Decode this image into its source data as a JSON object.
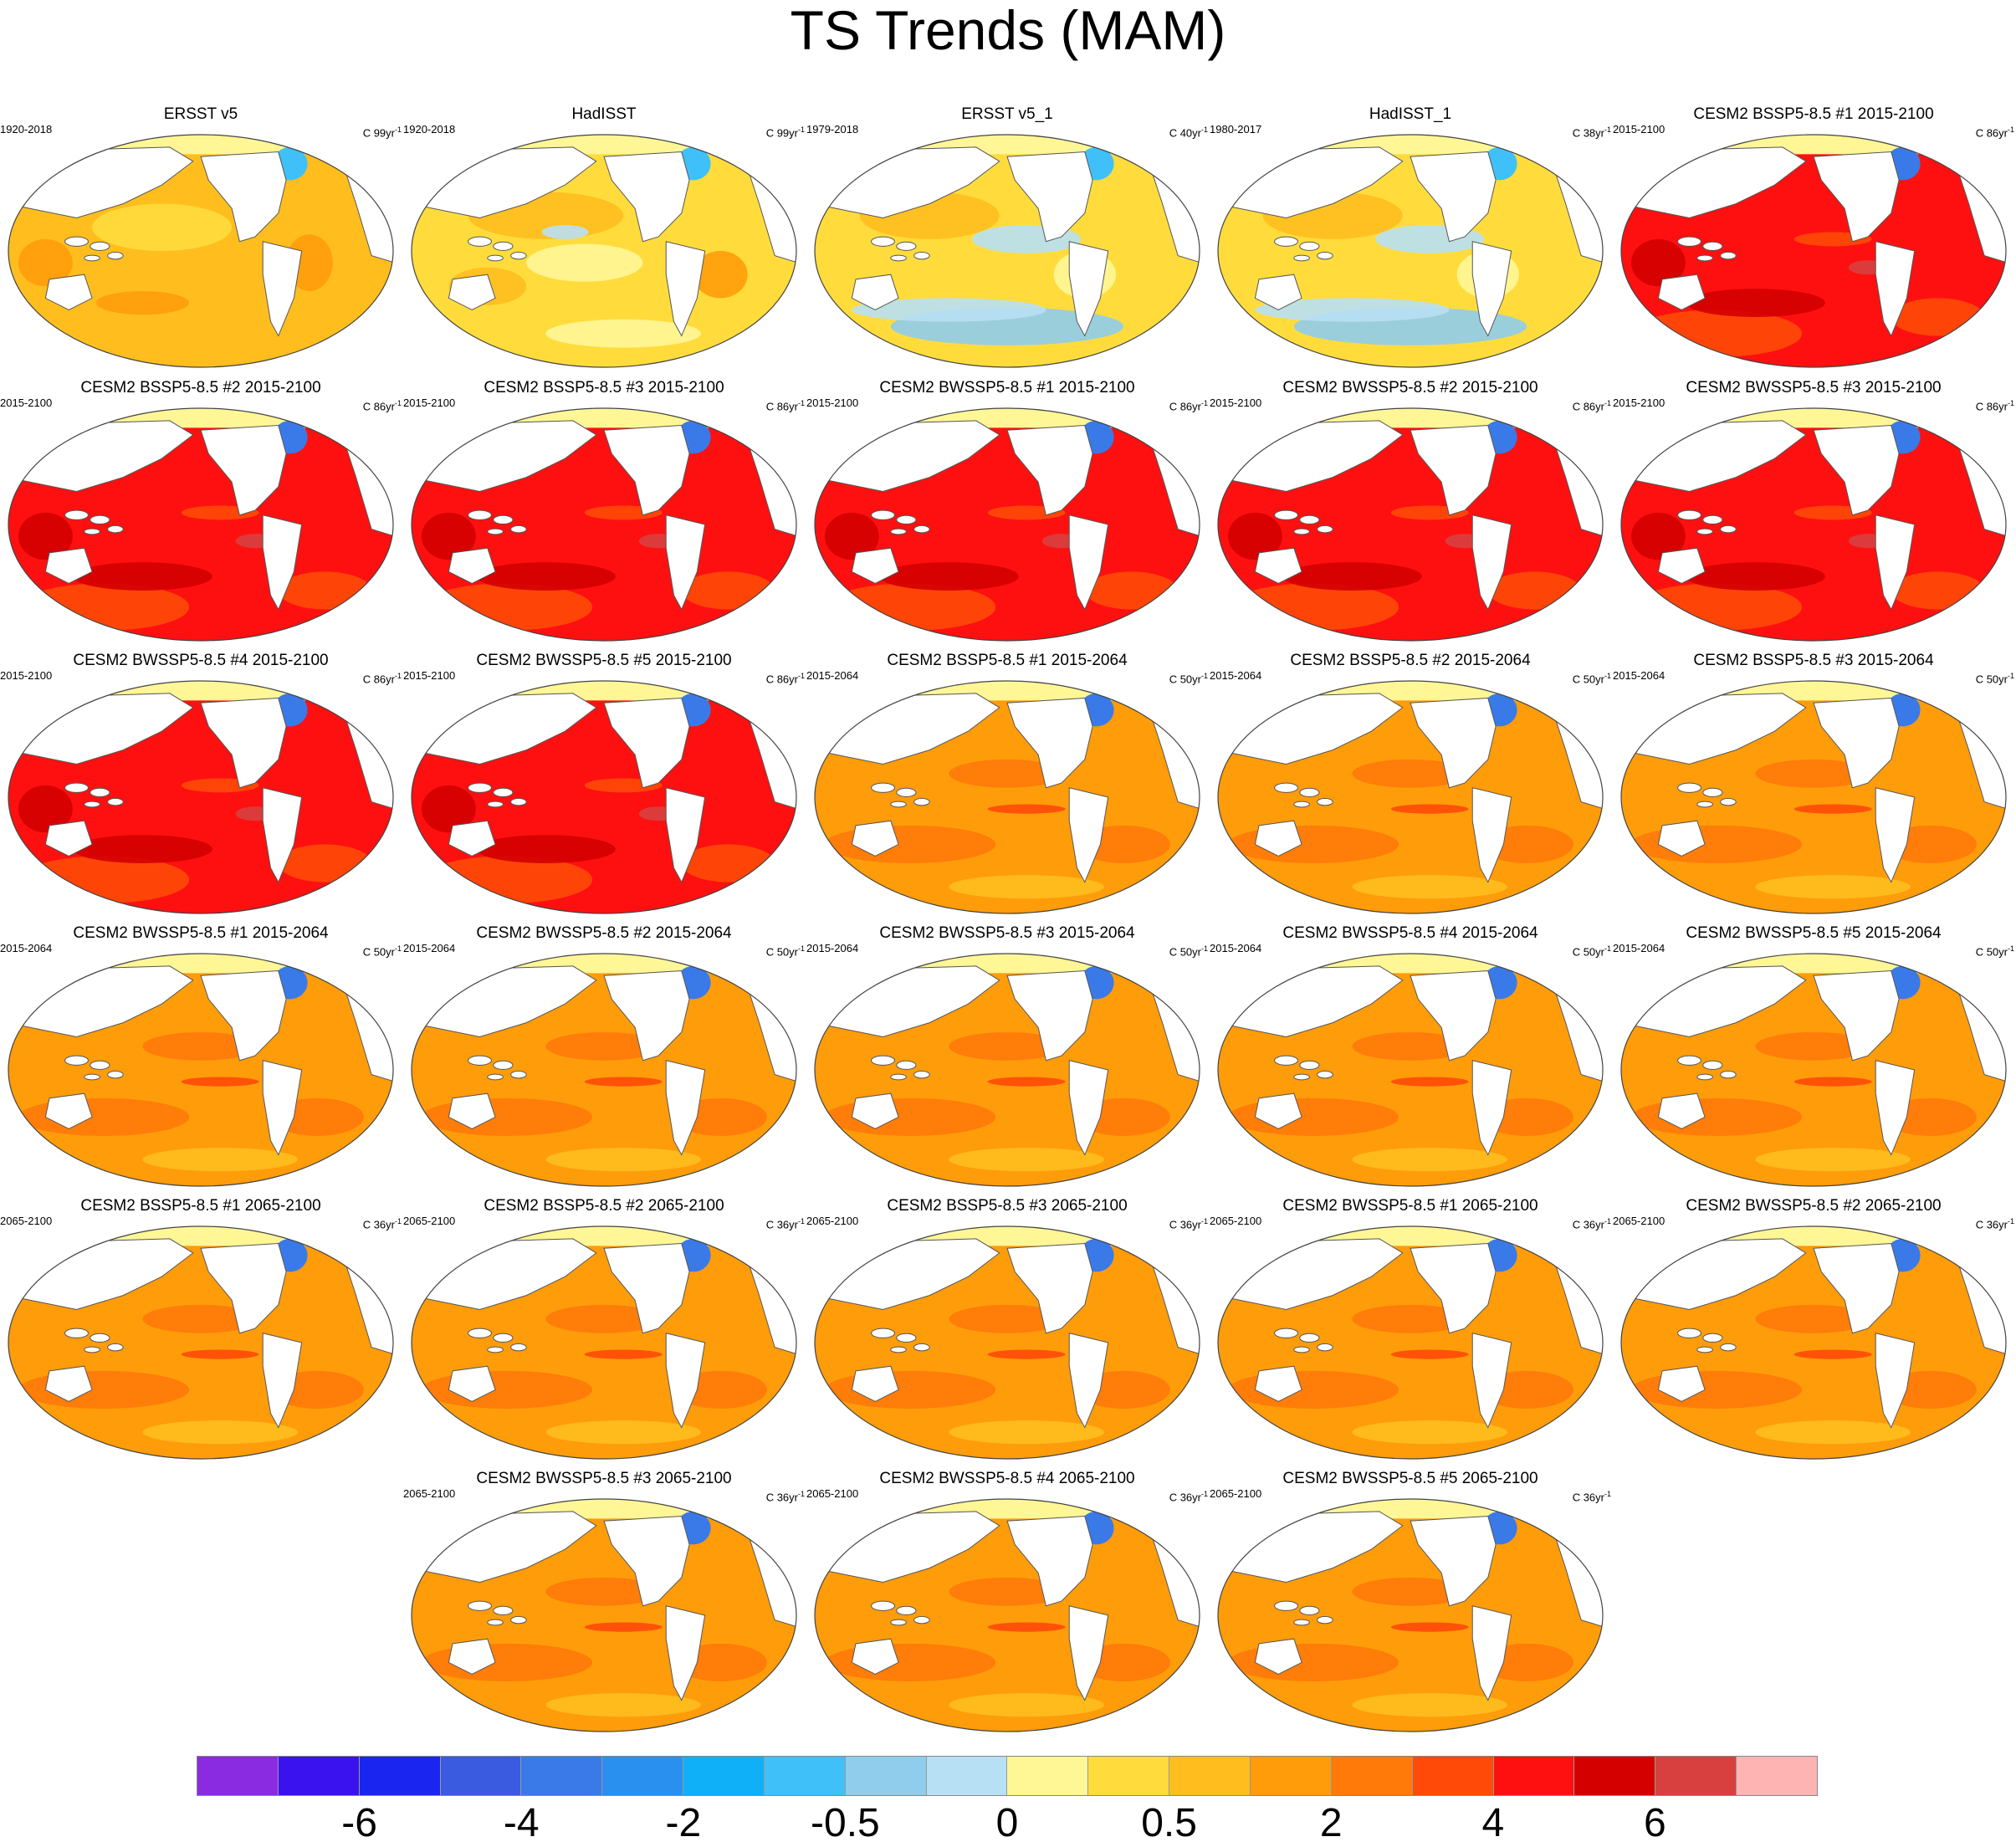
{
  "title": "TS Trends (MAM)",
  "panels": [
    {
      "title": "ERSST v5",
      "period": "1920-2018",
      "unit": "C 99yr",
      "sup": "-1",
      "style": "obs_warm"
    },
    {
      "title": "HadISST",
      "period": "1920-2018",
      "unit": "C 99yr",
      "sup": "-1",
      "style": "obs_mixed"
    },
    {
      "title": "ERSST v5_1",
      "period": "1979-2018",
      "unit": "C 40yr",
      "sup": "-1",
      "style": "obs_cool"
    },
    {
      "title": "HadISST_1",
      "period": "1980-2017",
      "unit": "C 38yr",
      "sup": "-1",
      "style": "obs_cool"
    },
    {
      "title": "CESM2 BSSP5-8.5 #1 2015-2100",
      "period": "2015-2100",
      "unit": "C 86yr",
      "sup": "-1",
      "style": "red"
    },
    {
      "title": "CESM2 BSSP5-8.5 #2 2015-2100",
      "period": "2015-2100",
      "unit": "C 86yr",
      "sup": "-1",
      "style": "red"
    },
    {
      "title": "CESM2 BSSP5-8.5 #3 2015-2100",
      "period": "2015-2100",
      "unit": "C 86yr",
      "sup": "-1",
      "style": "red"
    },
    {
      "title": "CESM2 BWSSP5-8.5 #1 2015-2100",
      "period": "2015-2100",
      "unit": "C 86yr",
      "sup": "-1",
      "style": "red"
    },
    {
      "title": "CESM2 BWSSP5-8.5 #2 2015-2100",
      "period": "2015-2100",
      "unit": "C 86yr",
      "sup": "-1",
      "style": "red"
    },
    {
      "title": "CESM2 BWSSP5-8.5 #3 2015-2100",
      "period": "2015-2100",
      "unit": "C 86yr",
      "sup": "-1",
      "style": "red"
    },
    {
      "title": "CESM2 BWSSP5-8.5 #4 2015-2100",
      "period": "2015-2100",
      "unit": "C 86yr",
      "sup": "-1",
      "style": "red"
    },
    {
      "title": "CESM2 BWSSP5-8.5 #5 2015-2100",
      "period": "2015-2100",
      "unit": "C 86yr",
      "sup": "-1",
      "style": "red"
    },
    {
      "title": "CESM2 BSSP5-8.5 #1 2015-2064",
      "period": "2015-2064",
      "unit": "C 50yr",
      "sup": "-1",
      "style": "orange"
    },
    {
      "title": "CESM2 BSSP5-8.5 #2 2015-2064",
      "period": "2015-2064",
      "unit": "C 50yr",
      "sup": "-1",
      "style": "orange"
    },
    {
      "title": "CESM2 BSSP5-8.5 #3 2015-2064",
      "period": "2015-2064",
      "unit": "C 50yr",
      "sup": "-1",
      "style": "orange"
    },
    {
      "title": "CESM2 BWSSP5-8.5 #1 2015-2064",
      "period": "2015-2064",
      "unit": "C 50yr",
      "sup": "-1",
      "style": "orange"
    },
    {
      "title": "CESM2 BWSSP5-8.5 #2 2015-2064",
      "period": "2015-2064",
      "unit": "C 50yr",
      "sup": "-1",
      "style": "orange"
    },
    {
      "title": "CESM2 BWSSP5-8.5 #3 2015-2064",
      "period": "2015-2064",
      "unit": "C 50yr",
      "sup": "-1",
      "style": "orange"
    },
    {
      "title": "CESM2 BWSSP5-8.5 #4 2015-2064",
      "period": "2015-2064",
      "unit": "C 50yr",
      "sup": "-1",
      "style": "orange"
    },
    {
      "title": "CESM2 BWSSP5-8.5 #5 2015-2064",
      "period": "2015-2064",
      "unit": "C 50yr",
      "sup": "-1",
      "style": "orange"
    },
    {
      "title": "CESM2 BSSP5-8.5 #1 2065-2100",
      "period": "2065-2100",
      "unit": "C 36yr",
      "sup": "-1",
      "style": "orange"
    },
    {
      "title": "CESM2 BSSP5-8.5 #2 2065-2100",
      "period": "2065-2100",
      "unit": "C 36yr",
      "sup": "-1",
      "style": "orange"
    },
    {
      "title": "CESM2 BSSP5-8.5 #3 2065-2100",
      "period": "2065-2100",
      "unit": "C 36yr",
      "sup": "-1",
      "style": "orange"
    },
    {
      "title": "CESM2 BWSSP5-8.5 #1 2065-2100",
      "period": "2065-2100",
      "unit": "C 36yr",
      "sup": "-1",
      "style": "orange"
    },
    {
      "title": "CESM2 BWSSP5-8.5 #2 2065-2100",
      "period": "2065-2100",
      "unit": "C 36yr",
      "sup": "-1",
      "style": "orange"
    },
    {
      "title": "CESM2 BWSSP5-8.5 #3 2065-2100",
      "period": "2065-2100",
      "unit": "C 36yr",
      "sup": "-1",
      "style": "orange"
    },
    {
      "title": "CESM2 BWSSP5-8.5 #4 2065-2100",
      "period": "2065-2100",
      "unit": "C 36yr",
      "sup": "-1",
      "style": "orange"
    },
    {
      "title": "CESM2 BWSSP5-8.5 #5 2065-2100",
      "period": "2065-2100",
      "unit": "C 36yr",
      "sup": "-1",
      "style": "orange"
    }
  ],
  "colorbar": {
    "colors": [
      "#8a2be2",
      "#3a12f0",
      "#1a26f0",
      "#3a5ae0",
      "#3a7ae8",
      "#2a90f0",
      "#10b0f8",
      "#40c0f8",
      "#90ccec",
      "#b8e0f4",
      "#fff696",
      "#ffdc3c",
      "#ffbe1e",
      "#ff9c0a",
      "#ff7a08",
      "#ff4a08",
      "#ff1010",
      "#d40000",
      "#d84040",
      "#ffb4b4"
    ],
    "labels": [
      "-6",
      "-4",
      "-2",
      "-0.5",
      "0",
      "0.5",
      "2",
      "4",
      "6"
    ]
  },
  "palette": {
    "land": "#ffffff",
    "coast": "#555555",
    "arctic": "#fff696"
  }
}
